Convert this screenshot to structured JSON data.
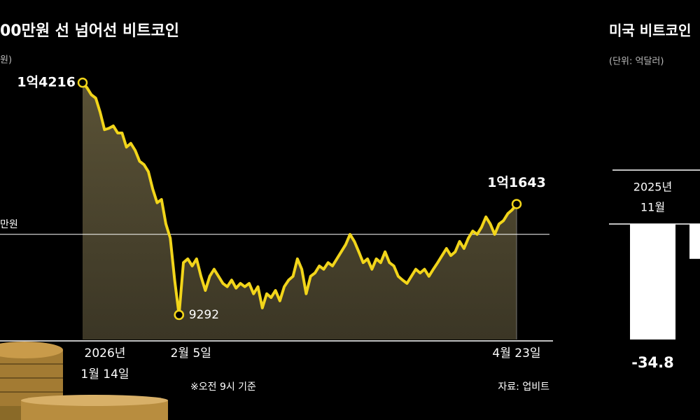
{
  "chart_data": [
    {
      "type": "line",
      "title": "00만원 선 넘어선 비트코인",
      "unit_label": "원)",
      "x_year_label": "2026년",
      "categories": [
        "1월 14일",
        null,
        null,
        null,
        null,
        null,
        null,
        null,
        null,
        null,
        null,
        null,
        null,
        null,
        null,
        null,
        null,
        null,
        null,
        null,
        null,
        null,
        "2월 5일",
        null,
        null,
        null,
        null,
        null,
        null,
        null,
        null,
        null,
        null,
        null,
        null,
        null,
        null,
        null,
        null,
        null,
        null,
        null,
        null,
        null,
        null,
        null,
        null,
        null,
        null,
        null,
        null,
        null,
        null,
        null,
        null,
        null,
        null,
        null,
        null,
        null,
        null,
        null,
        null,
        null,
        null,
        null,
        null,
        null,
        null,
        null,
        null,
        null,
        null,
        null,
        null,
        null,
        null,
        null,
        null,
        null,
        null,
        null,
        null,
        null,
        null,
        null,
        null,
        null,
        null,
        null,
        null,
        null,
        null,
        null,
        null,
        null,
        null,
        null,
        null,
        "4월 23일"
      ],
      "values": [
        14216,
        14110,
        13960,
        13890,
        13590,
        13220,
        13250,
        13300,
        13150,
        13150,
        12850,
        12930,
        12780,
        12550,
        12480,
        12330,
        11960,
        11670,
        11740,
        11220,
        10920,
        10030,
        9292,
        10400,
        10480,
        10330,
        10480,
        10110,
        9810,
        10110,
        10260,
        10110,
        9960,
        9890,
        10030,
        9860,
        9960,
        9890,
        9960,
        9740,
        9890,
        9440,
        9740,
        9660,
        9810,
        9590,
        9890,
        10030,
        10110,
        10480,
        10260,
        9740,
        10110,
        10180,
        10330,
        10260,
        10400,
        10330,
        10480,
        10630,
        10780,
        11000,
        10850,
        10630,
        10400,
        10480,
        10260,
        10480,
        10400,
        10630,
        10400,
        10330,
        10110,
        10030,
        9960,
        10110,
        10260,
        10180,
        10260,
        10110,
        10260,
        10400,
        10550,
        10700,
        10550,
        10630,
        10850,
        10700,
        10920,
        11070,
        11000,
        11150,
        11370,
        11220,
        11000,
        11220,
        11290,
        11440,
        11520,
        11643
      ],
      "value_labels": [
        "1억4216",
        null,
        null,
        null,
        null,
        null,
        null,
        null,
        null,
        null,
        null,
        null,
        null,
        null,
        null,
        null,
        null,
        null,
        null,
        null,
        null,
        null,
        null,
        null,
        null,
        null,
        null,
        null,
        null,
        null,
        null,
        null,
        null,
        null,
        null,
        null,
        null,
        null,
        null,
        null,
        null,
        null,
        null,
        null,
        null,
        null,
        null,
        null,
        null,
        null,
        null,
        null,
        null,
        null,
        null,
        null,
        null,
        null,
        null,
        null,
        null,
        null,
        null,
        null,
        null,
        null,
        null,
        null,
        null,
        null,
        null,
        null,
        null,
        null,
        null,
        null,
        null,
        null,
        null,
        null,
        null,
        null,
        null,
        null,
        null,
        null,
        null,
        null,
        null,
        null,
        null,
        null,
        null,
        null,
        null,
        null,
        null,
        null,
        null,
        "1억1643"
      ],
      "color": "#f2d51a",
      "area_color": "#4d4632",
      "ylim": [
        8770,
        15970
      ],
      "reference_line": {
        "value": 11000,
        "label": "만원"
      },
      "notes": [
        "※오전 9시 기준",
        "자료: 업비트"
      ]
    },
    {
      "type": "bar",
      "title": "미국 비트코인",
      "unit_label": "(단위: 억달러)",
      "x_year_label": "2025년",
      "categories": [
        "11월",
        null
      ],
      "values": [
        -34.8,
        -10.5
      ],
      "value_labels": [
        "-34.8",
        null
      ],
      "color": "#ffffff",
      "ylim": [
        -58,
        0
      ]
    }
  ]
}
